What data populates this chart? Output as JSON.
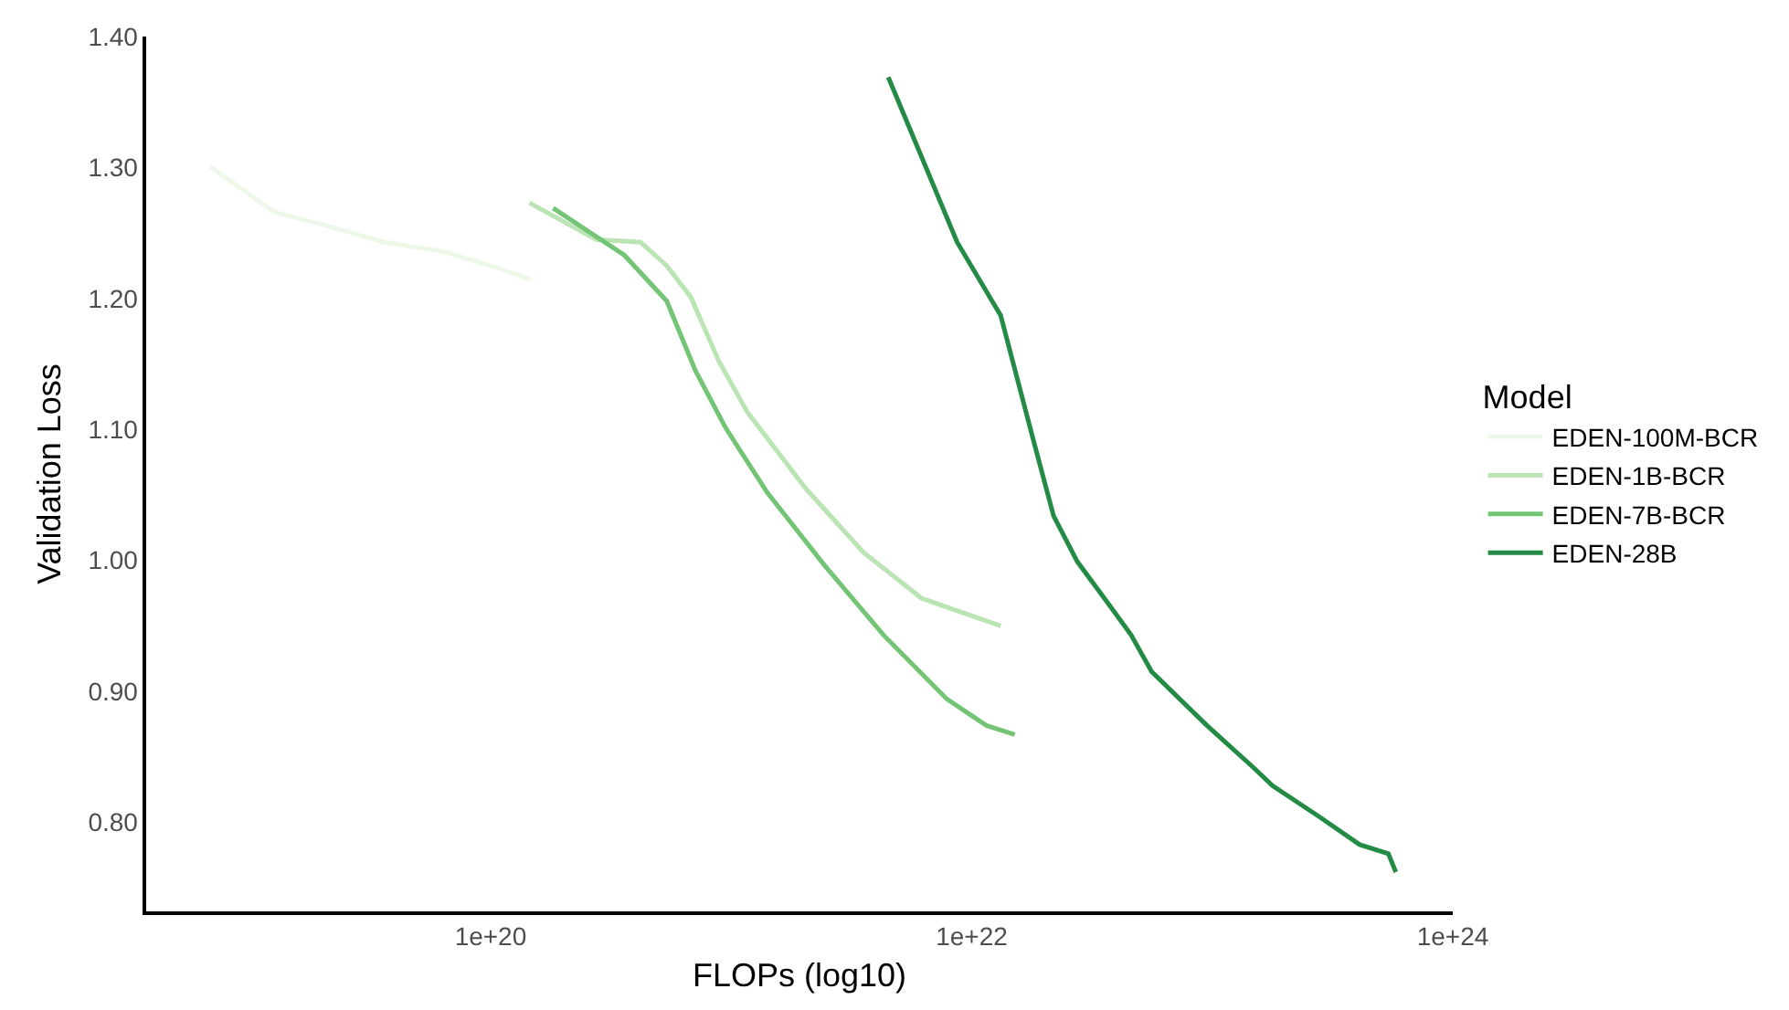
{
  "chart_data": {
    "type": "line",
    "xlabel": "FLOPs (log10)",
    "ylabel": "Validation Loss",
    "legend_title": "Model",
    "legend": "right",
    "log": "x",
    "marker": "none",
    "line_style": "solid",
    "xlim": [
      3.7e+18,
      1e+24
    ],
    "xticks": [
      {
        "value": 1e+20,
        "label": "1e+20"
      },
      {
        "value": 1e+22,
        "label": "1e+22"
      },
      {
        "value": 1e+24,
        "label": "1e+24"
      }
    ],
    "ylim": [
      0.732,
      1.4
    ],
    "yticks": [
      {
        "value": 0.8,
        "label": "0.80"
      },
      {
        "value": 0.9,
        "label": "0.90"
      },
      {
        "value": 1.0,
        "label": "1.00"
      },
      {
        "value": 1.1,
        "label": "1.10"
      },
      {
        "value": 1.2,
        "label": "1.20"
      },
      {
        "value": 1.3,
        "label": "1.30"
      },
      {
        "value": 1.4,
        "label": "1.40"
      }
    ],
    "series": [
      {
        "name": "EDEN-100M-BCR",
        "color": "#edf8e9",
        "x": [
          6.8e+18,
          1.26e+19,
          1.95e+19,
          3.6e+19,
          6.3e+19,
          1e+20,
          1.45e+20
        ],
        "values": [
          1.301,
          1.266,
          1.257,
          1.243,
          1.236,
          1.225,
          1.215
        ]
      },
      {
        "name": "EDEN-1B-BCR",
        "color": "#bae4b3",
        "x": [
          1.45e+20,
          2.75e+20,
          4.2e+20,
          5.4e+20,
          6.8e+20,
          8.9e+20,
          1.17e+21,
          2.04e+21,
          3.55e+21,
          6.2e+21,
          1.32e+22
        ],
        "values": [
          1.273,
          1.245,
          1.243,
          1.225,
          1.201,
          1.152,
          1.113,
          1.055,
          1.006,
          0.971,
          0.95
        ]
      },
      {
        "name": "EDEN-7B-BCR",
        "color": "#74c476",
        "x": [
          1.82e+20,
          3.6e+20,
          5.4e+20,
          7.1e+20,
          9.5e+20,
          1.41e+21,
          2.45e+21,
          4.3e+21,
          7.9e+21,
          1.15e+22,
          1.51e+22
        ],
        "values": [
          1.269,
          1.233,
          1.198,
          1.145,
          1.101,
          1.052,
          0.996,
          0.943,
          0.894,
          0.874,
          0.867
        ]
      },
      {
        "name": "EDEN-28B",
        "color": "#238b45",
        "x": [
          4.5e+21,
          8.7e+21,
          1.32e+22,
          1.78e+22,
          2.19e+22,
          2.75e+22,
          3.8e+22,
          4.6e+22,
          5.6e+22,
          9.5e+22,
          1.48e+23,
          1.78e+23,
          2.8e+23,
          4.1e+23,
          5.4e+23,
          5.8e+23
        ],
        "values": [
          1.369,
          1.243,
          1.187,
          1.096,
          1.034,
          0.999,
          0.964,
          0.943,
          0.915,
          0.874,
          0.842,
          0.828,
          0.804,
          0.783,
          0.776,
          0.762
        ]
      }
    ]
  }
}
